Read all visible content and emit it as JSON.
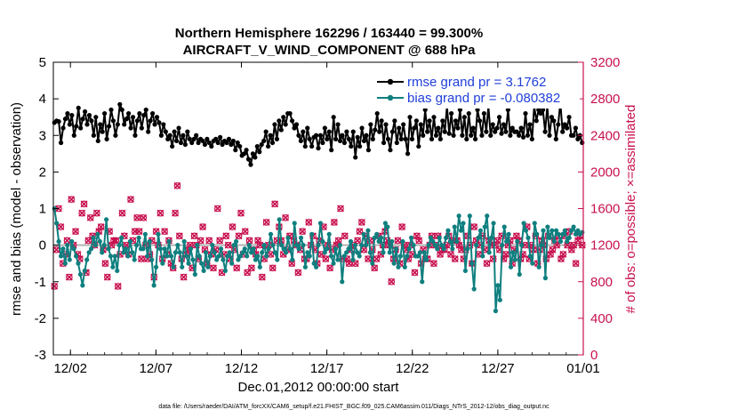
{
  "chart_data": {
    "type": "line",
    "title": "Northern Hemisphere 162296 / 163440 = 99.300%",
    "subtitle": "AIRCRAFT_V_WIND_COMPONENT @ 688 hPa",
    "xlabel": "Dec.01,2012 00:00:00 start",
    "ylabel": "rmse and bias (model - observation)",
    "ylabel_right": "# of obs: o=possible; ×=assimilated",
    "footnote": "data file: /Users/raeder/DAI/ATM_forcXX/CAM6_setup/f.e21.FHIST_BGC.f09_025.CAM6assim.011/Diags_NTrS_2012-12/obs_diag_output.nc",
    "xlim": [
      0,
      31
    ],
    "ylim": [
      -3,
      5
    ],
    "ylim_right": [
      0,
      3200
    ],
    "x_ticks": [
      1,
      6,
      11,
      16,
      21,
      26,
      31
    ],
    "x_tick_labels": [
      "12/02",
      "12/07",
      "12/12",
      "12/17",
      "12/22",
      "12/27",
      "01/01"
    ],
    "y_ticks": [
      -3,
      -2,
      -1,
      0,
      1,
      2,
      3,
      4,
      5
    ],
    "y_tick_labels": [
      "-3",
      "-2",
      "-1",
      "0",
      "1",
      "2",
      "3",
      "4",
      "5"
    ],
    "y_right_ticks": [
      0,
      400,
      800,
      1200,
      1600,
      2000,
      2400,
      2800,
      3200
    ],
    "y_right_tick_labels": [
      "0",
      "400",
      "800",
      "1200",
      "1600",
      "2000",
      "2400",
      "2800",
      "3200"
    ],
    "grid": false,
    "legend_position": "top-right",
    "colors": {
      "rmse": "#000000",
      "bias": "#0f7f7f",
      "obs": "#c8104f",
      "zero": "#b3b3b3",
      "legend_text": "#1f3fd9"
    },
    "series": [
      {
        "name": "rmse grand pr = 3.1762",
        "axis": "left",
        "values": [
          3.35,
          3.4,
          3.38,
          2.8,
          3.2,
          3.45,
          3.6,
          3.3,
          3.55,
          3.0,
          3.25,
          3.75,
          3.2,
          3.45,
          3.65,
          3.3,
          3.55,
          3.4,
          3.0,
          3.5,
          2.85,
          3.3,
          3.1,
          3.6,
          2.9,
          3.25,
          3.7,
          3.4,
          3.0,
          3.3,
          3.85,
          3.7,
          3.3,
          3.45,
          3.6,
          3.2,
          3.5,
          3.0,
          3.4,
          3.6,
          3.2,
          3.55,
          3.7,
          3.1,
          3.4,
          3.6,
          3.3,
          3.5,
          3.35,
          3.0,
          3.3,
          3.1,
          2.9,
          3.0,
          2.7,
          3.1,
          2.85,
          3.2,
          2.8,
          3.0,
          2.75,
          3.1,
          2.9,
          2.8,
          2.9,
          3.0,
          2.8,
          2.9,
          2.85,
          2.75,
          2.9,
          2.8,
          2.7,
          2.85,
          2.9,
          2.8,
          2.95,
          2.75,
          2.85,
          2.8,
          2.9,
          2.75,
          2.85,
          2.6,
          2.8,
          2.7,
          2.45,
          2.5,
          2.6,
          2.35,
          2.2,
          2.5,
          2.4,
          2.7,
          2.55,
          2.75,
          2.85,
          3.1,
          2.7,
          3.0,
          2.8,
          3.3,
          2.9,
          3.4,
          3.15,
          3.5,
          3.3,
          3.6,
          3.6,
          3.4,
          3.2,
          3.3,
          3.0,
          2.85,
          3.1,
          2.7,
          3.2,
          2.9,
          2.7,
          2.95,
          3.0,
          2.65,
          3.0,
          2.8,
          3.2,
          2.9,
          3.1,
          2.6,
          3.5,
          2.9,
          3.3,
          2.85,
          3.0,
          2.8,
          3.1,
          2.9,
          2.7,
          3.1,
          2.4,
          2.95,
          2.7,
          3.2,
          2.85,
          3.0,
          2.6,
          3.3,
          2.9,
          3.15,
          3.6,
          3.1,
          3.4,
          2.8,
          3.3,
          2.9,
          2.6,
          3.1,
          3.4,
          2.8,
          3.2,
          2.9,
          3.3,
          2.9,
          2.5,
          3.5,
          2.9,
          3.2,
          3.4,
          2.7,
          3.3,
          3.0,
          3.7,
          3.1,
          3.4,
          2.9,
          3.5,
          3.0,
          3.2,
          2.9,
          3.4,
          3.1,
          3.8,
          3.05,
          3.6,
          3.0,
          3.4,
          3.2,
          3.7,
          3.0,
          3.5,
          2.9,
          3.6,
          3.0,
          3.2,
          2.9,
          3.7,
          3.4,
          3.0,
          3.6,
          3.1,
          3.8,
          3.0,
          3.3,
          3.1,
          3.2,
          3.5,
          3.05,
          3.3,
          3.1,
          3.7,
          3.0,
          3.2,
          3.1,
          3.1,
          3.0,
          3.2,
          2.95,
          3.6,
          3.0,
          3.3,
          2.9,
          3.8,
          3.4,
          3.7,
          3.6,
          3.7,
          3.1,
          3.8,
          3.0,
          3.5,
          3.4,
          2.9,
          3.3,
          3.9,
          3.1,
          3.3,
          3.2,
          3.5,
          3.0,
          3.0,
          3.2,
          2.9,
          3.0,
          2.8
        ]
      },
      {
        "name": "bias grand pr = -0.080382",
        "axis": "left",
        "values": [
          1.0,
          0.6,
          0.1,
          -0.3,
          -0.1,
          -0.5,
          0.0,
          -0.4,
          0.1,
          -0.1,
          -0.3,
          -0.5,
          -0.8,
          -1.1,
          -0.7,
          -0.4,
          -0.2,
          -0.1,
          0.2,
          0.0,
          0.3,
          0.1,
          -0.2,
          0.0,
          0.7,
          -0.1,
          -0.3,
          -0.6,
          -0.3,
          -0.7,
          0.0,
          0.2,
          -0.2,
          -0.1,
          -0.3,
          0.1,
          -0.2,
          -0.4,
          0.0,
          0.2,
          -0.1,
          -0.1,
          0.3,
          -0.3,
          0.1,
          -0.4,
          -1.1,
          -0.6,
          0.3,
          -0.1,
          -0.5,
          -0.1,
          -0.3,
          0.1,
          -0.3,
          -0.6,
          -0.2,
          0.0,
          -0.2,
          -0.6,
          0.1,
          -0.3,
          -0.5,
          -0.1,
          -0.4,
          -0.8,
          0.0,
          -0.3,
          -0.5,
          -0.7,
          -0.2,
          -0.6,
          -0.3,
          0.0,
          -0.2,
          -0.4,
          -0.3,
          -0.1,
          -0.4,
          -0.7,
          -0.3,
          -0.2,
          -0.5,
          0.0,
          0.1,
          -0.4,
          -0.3,
          -0.2,
          -0.1,
          -0.3,
          0.0,
          -0.2,
          -0.1,
          -0.4,
          -0.3,
          -0.6,
          -0.2,
          0.0,
          -0.3,
          -0.1,
          0.3,
          0.0,
          -0.2,
          -0.4,
          0.7,
          0.0,
          -0.1,
          -0.2,
          0.2,
          -0.1,
          -0.4,
          0.6,
          0.0,
          -0.1,
          0.2,
          0.0,
          -0.6,
          -0.2,
          -0.3,
          0.3,
          -0.5,
          -0.6,
          0.0,
          0.6,
          0.1,
          -0.2,
          -0.1,
          0.3,
          -0.3,
          -0.5,
          -0.1,
          -0.4,
          0.0,
          -1.0,
          -0.3,
          -0.2,
          -0.1,
          0.1,
          -0.4,
          0.0,
          -0.2,
          -0.3,
          0.0,
          0.3,
          0.0,
          0.4,
          -0.2,
          -0.5,
          0.2,
          0.3,
          0.1,
          0.2,
          -0.2,
          0.6,
          0.5,
          -0.2,
          0.1,
          -0.5,
          -0.1,
          -0.6,
          -0.3,
          0.1,
          -0.6,
          -0.3,
          -0.1,
          0.2,
          0.0,
          -0.3,
          -0.3,
          -0.2,
          -1.0,
          -0.2,
          -0.4,
          0.0,
          0.2,
          0.1,
          0.0,
          -0.1,
          0.2,
          0.0,
          -0.1,
          0.2,
          0.4,
          0.1,
          -0.1,
          0.5,
          0.1,
          0.8,
          0.4,
          0.6,
          -0.7,
          -0.1,
          0.8,
          -0.5,
          -1.2,
          0.0,
          0.2,
          0.4,
          -0.3,
          0.5,
          0.8,
          -0.2,
          0.2,
          0.6,
          -1.8,
          -1.1,
          -1.5,
          0.0,
          0.5,
          0.1,
          0.3,
          -0.6,
          -0.2,
          -0.4,
          0.1,
          -0.8,
          0.0,
          0.6,
          0.4,
          0.2,
          -0.3,
          -0.5,
          0.6,
          0.3,
          -0.6,
          0.0,
          0.4,
          -0.9,
          0.5,
          0.2,
          0.4,
          0.1,
          0.4,
          0.3,
          0.1,
          0.3,
          0.4,
          0.1,
          0.2,
          0.4,
          0.5,
          0.3,
          0.4,
          0.3,
          0.35
        ]
      },
      {
        "name": "# of obs possible",
        "axis": "right",
        "values": [
          750,
          1150,
          1600,
          1400,
          1000,
          1100,
          1250,
          850,
          1700,
          1200,
          1350,
          1100,
          1050,
          1550,
          1650,
          900,
          1250,
          1500,
          1300,
          1200,
          1550,
          1350,
          1400,
          1150,
          1000,
          850,
          1350,
          1200,
          1250,
          1250,
          750,
          1100,
          1550,
          1300,
          1200,
          1100,
          1700,
          1250,
          1350,
          1500,
          1350,
          1050,
          1500,
          1200,
          1050,
          1100,
          1250,
          850,
          1350,
          1200,
          1550,
          1050,
          1350,
          1100,
          1250,
          1000,
          950,
          1550,
          1850,
          1300,
          1050,
          850,
          1100,
          1150,
          1200,
          950,
          1300,
          1200,
          1050,
          1250,
          1400,
          1150,
          1000,
          1250,
          1100,
          950,
          1150,
          1600,
          1250,
          900,
          1100,
          1300,
          1200,
          1050,
          1400,
          1150,
          950,
          1300,
          1550,
          1100,
          1350,
          900,
          1250,
          950,
          1150,
          1100,
          1250,
          1200,
          850,
          1050,
          1450,
          1200,
          1100,
          950,
          1650,
          1250,
          1400,
          1250,
          1100,
          1500,
          1150,
          1300,
          1000,
          1250,
          1200,
          900,
          1150,
          1350,
          1050,
          1050,
          1450,
          1200,
          1300,
          1150,
          1000,
          1250,
          1100,
          1400,
          1050,
          1200,
          950,
          1150,
          1450,
          1200,
          1250,
          1600,
          1050,
          1300,
          1050,
          1000,
          1150,
          1200,
          1000,
          1250,
          1350,
          1450,
          1150,
          1300,
          1050,
          1250,
          1150,
          950,
          1050,
          1300,
          1100,
          1200,
          1350,
          1250,
          1200,
          800,
          1050,
          1150,
          1250,
          1000,
          1400,
          1200,
          1150,
          1050,
          1200,
          1100,
          900,
          1300,
          1250,
          1000,
          1150,
          1050,
          1050,
          1200,
          1300,
          1000,
          1200,
          1300,
          1100,
          1150,
          1150,
          1200,
          1300,
          1100,
          1250,
          1050,
          1250,
          1200,
          1150,
          1050,
          1150,
          1300,
          1200,
          1000,
          1400,
          1250,
          1100,
          1200,
          1300,
          1150,
          1000,
          1250,
          1200,
          1050,
          1200,
          1250,
          1150,
          1300,
          1050,
          1100,
          1200,
          1250,
          1000,
          1150,
          1300,
          1250,
          1050,
          1100,
          1200,
          1400,
          1050,
          1200,
          1150,
          1300,
          1000,
          1150,
          1250,
          1200,
          1050,
          1300,
          1100,
          1150,
          1250,
          1200,
          1300,
          1050,
          1100,
          1300,
          1200,
          1350,
          1150,
          1200,
          1000,
          1250,
          1300,
          1200
        ]
      }
    ]
  }
}
